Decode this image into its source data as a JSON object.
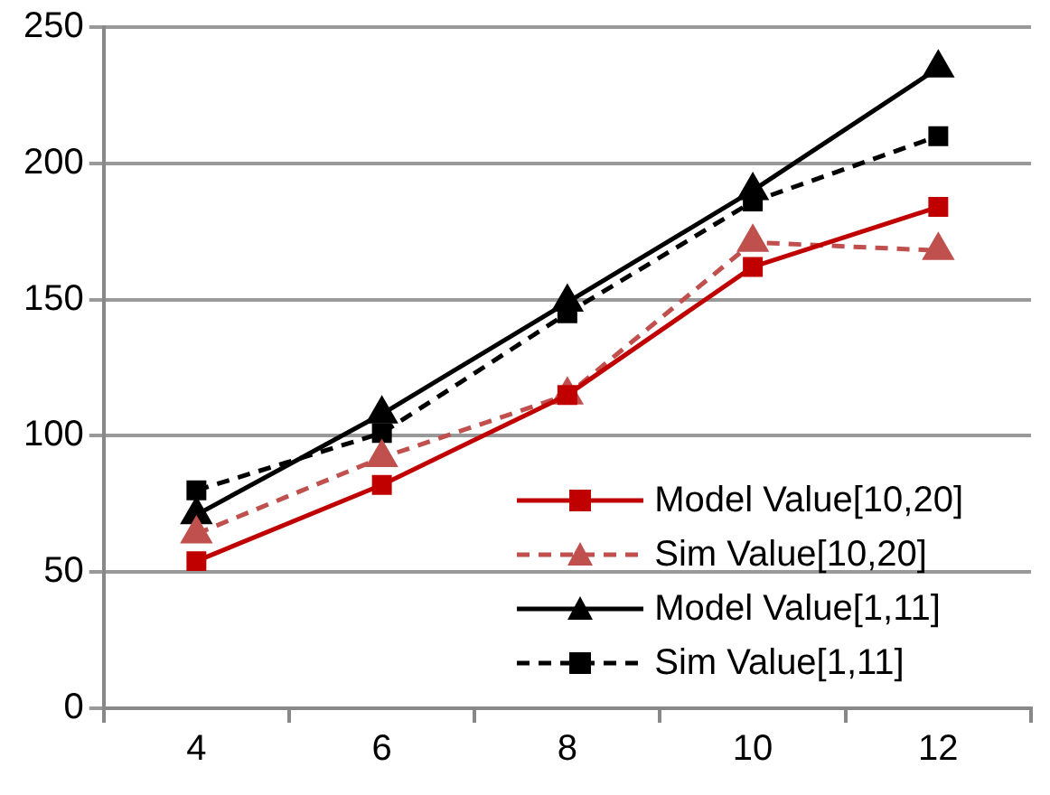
{
  "chart_data": {
    "type": "line",
    "categories": [
      "4",
      "6",
      "8",
      "10",
      "12"
    ],
    "series": [
      {
        "name": "Model Value[10,20]",
        "color": "#c00000",
        "marker": "square",
        "line_style": "solid",
        "values": [
          54,
          82,
          115,
          162,
          184
        ]
      },
      {
        "name": "Sim Value[10,20]",
        "color": "#c0504d",
        "marker": "triangle",
        "line_style": "dashed",
        "values": [
          64,
          92,
          115,
          171,
          168
        ]
      },
      {
        "name": "Model Value[1,11]",
        "color": "#000000",
        "marker": "triangle",
        "line_style": "solid",
        "values": [
          71,
          108,
          149,
          190,
          235
        ]
      },
      {
        "name": "Sim Value[1,11]",
        "color": "#000000",
        "marker": "square",
        "line_style": "dashed",
        "values": [
          80,
          101,
          145,
          186,
          210
        ]
      }
    ],
    "ylim": [
      0,
      250
    ],
    "yticks": [
      0,
      50,
      100,
      150,
      200,
      250
    ],
    "grid": "y",
    "legend": "bottom right"
  }
}
